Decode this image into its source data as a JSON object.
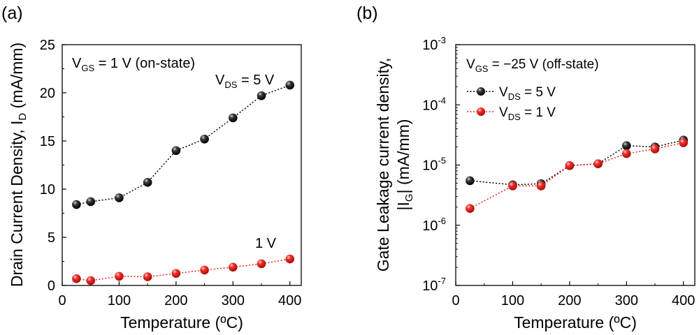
{
  "chart_data": [
    {
      "panel_label": "(a)",
      "type": "line",
      "xlabel": "Temperature (ºC)",
      "ylabel_parts": {
        "main": "Drain Current Density, I",
        "sub": "D",
        "unit": " (mA/mm)"
      },
      "xlim": [
        0,
        420
      ],
      "ylim": [
        0,
        25
      ],
      "yscale": "linear",
      "xticks": [
        0,
        100,
        200,
        300,
        400
      ],
      "yticks": [
        0,
        5,
        10,
        15,
        20,
        25
      ],
      "condition": {
        "main": "V",
        "sub": "GS",
        "rest": " = 1 V (on-state)"
      },
      "series": [
        {
          "name": "V_DS = 5 V",
          "label_parts": {
            "main": "V",
            "sub": "DS",
            "rest": " = 5 V"
          },
          "color": "#111111",
          "line_color": "#000000",
          "x": [
            25,
            50,
            100,
            150,
            200,
            250,
            300,
            350,
            400
          ],
          "y": [
            8.4,
            8.7,
            9.1,
            10.7,
            14.0,
            15.2,
            17.4,
            19.7,
            20.8
          ]
        },
        {
          "name": "1 V",
          "label_parts": {
            "main": "1 V"
          },
          "color": "#e8201c",
          "line_color": "#e8201c",
          "x": [
            25,
            50,
            100,
            150,
            200,
            250,
            300,
            350,
            400
          ],
          "y": [
            0.7,
            0.5,
            0.95,
            0.9,
            1.25,
            1.6,
            1.9,
            2.25,
            2.75
          ]
        }
      ]
    },
    {
      "panel_label": "(b)",
      "type": "line",
      "xlabel": "Temperature (ºC)",
      "ylabel_line1": "Gate Leakage current density,",
      "ylabel_line2_parts": {
        "pre": "|I",
        "sub": "G",
        "post": "|  (mA/mm)"
      },
      "xlim": [
        0,
        420
      ],
      "ylim": [
        1e-07,
        0.001
      ],
      "yscale": "log",
      "xticks": [
        0,
        100,
        200,
        300,
        400
      ],
      "yticks": [
        1e-07,
        1e-06,
        1e-05,
        0.0001,
        0.001
      ],
      "ytick_exponents": [
        "-7",
        "-6",
        "-5",
        "-4",
        "-3"
      ],
      "ytick_base": "10",
      "condition": {
        "main": "V",
        "sub": "GS",
        "rest": " = −25 V (off-state)"
      },
      "legend_position": "top-left",
      "series": [
        {
          "name": "V_DS = 5 V",
          "label_parts": {
            "main": "V",
            "sub": "DS",
            "rest": " = 5 V"
          },
          "color": "#111111",
          "line_color": "#000000",
          "x": [
            25,
            100,
            150,
            200,
            250,
            300,
            350,
            400
          ],
          "y": [
            5.5e-06,
            4.7e-06,
            4.9e-06,
            9.8e-06,
            1.05e-05,
            2.1e-05,
            2e-05,
            2.6e-05
          ]
        },
        {
          "name": "V_DS = 1 V",
          "label_parts": {
            "main": "V",
            "sub": "DS",
            "rest": " = 1 V"
          },
          "color": "#e8201c",
          "line_color": "#e8201c",
          "x": [
            25,
            100,
            150,
            200,
            250,
            300,
            350,
            400
          ],
          "y": [
            1.9e-06,
            4.5e-06,
            4.5e-06,
            9.8e-06,
            1.05e-05,
            1.55e-05,
            1.85e-05,
            2.35e-05
          ]
        }
      ]
    }
  ]
}
